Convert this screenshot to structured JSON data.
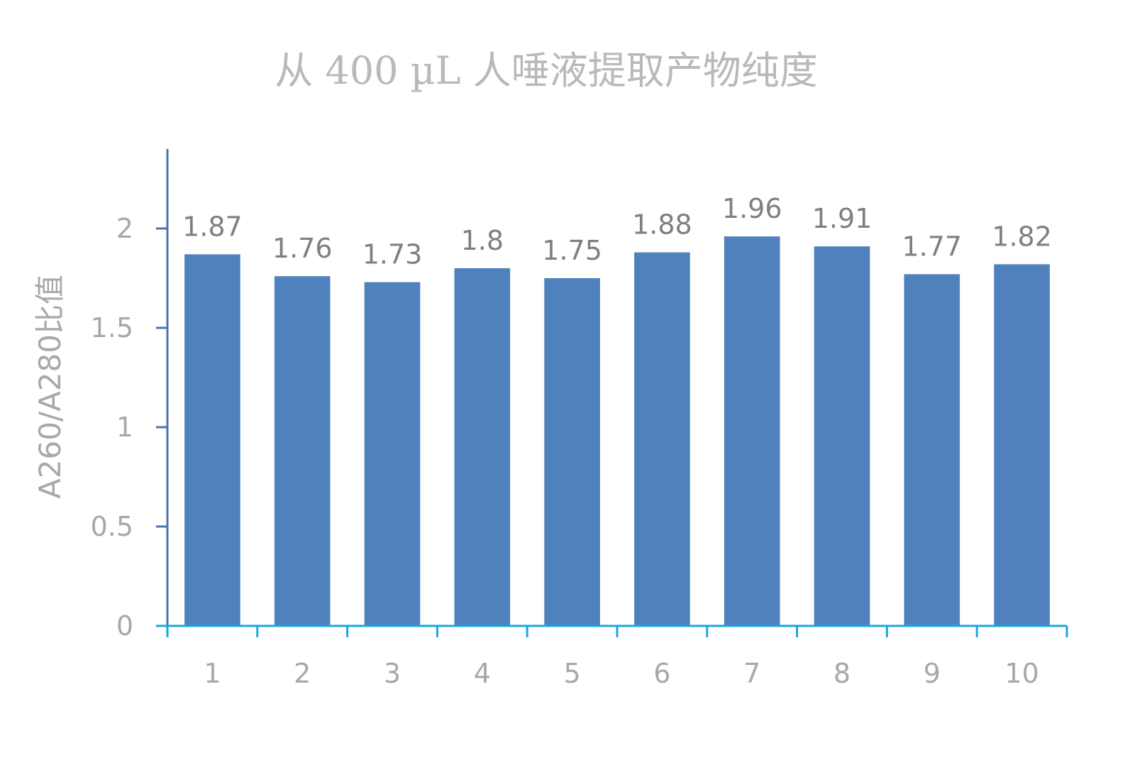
{
  "chart_data": {
    "type": "bar",
    "title": "从 400 µL 人唾液提取产物纯度",
    "xlabel": "",
    "ylabel": "A260/A280比值",
    "categories": [
      "1",
      "2",
      "3",
      "4",
      "5",
      "6",
      "7",
      "8",
      "9",
      "10"
    ],
    "values": [
      1.87,
      1.76,
      1.73,
      1.8,
      1.75,
      1.88,
      1.96,
      1.91,
      1.77,
      1.82
    ],
    "data_labels": [
      "1.87",
      "1.76",
      "1.73",
      "1.8",
      "1.75",
      "1.88",
      "1.96",
      "1.91",
      "1.77",
      "1.82"
    ],
    "ylim": [
      0,
      2.4
    ],
    "yticks": [
      0,
      0.5,
      1,
      1.5,
      2
    ],
    "ytick_labels": [
      "0",
      "0.5",
      "1",
      "1.5",
      "2"
    ],
    "grid": false,
    "legend": "none",
    "colors": {
      "bar": "#4f81bd",
      "y_axis": "#4a74ad",
      "x_axis": "#19a7df",
      "title": "#b9b9b9",
      "tick_label": "#a8a8a8",
      "data_label": "#7f7f7f"
    }
  }
}
